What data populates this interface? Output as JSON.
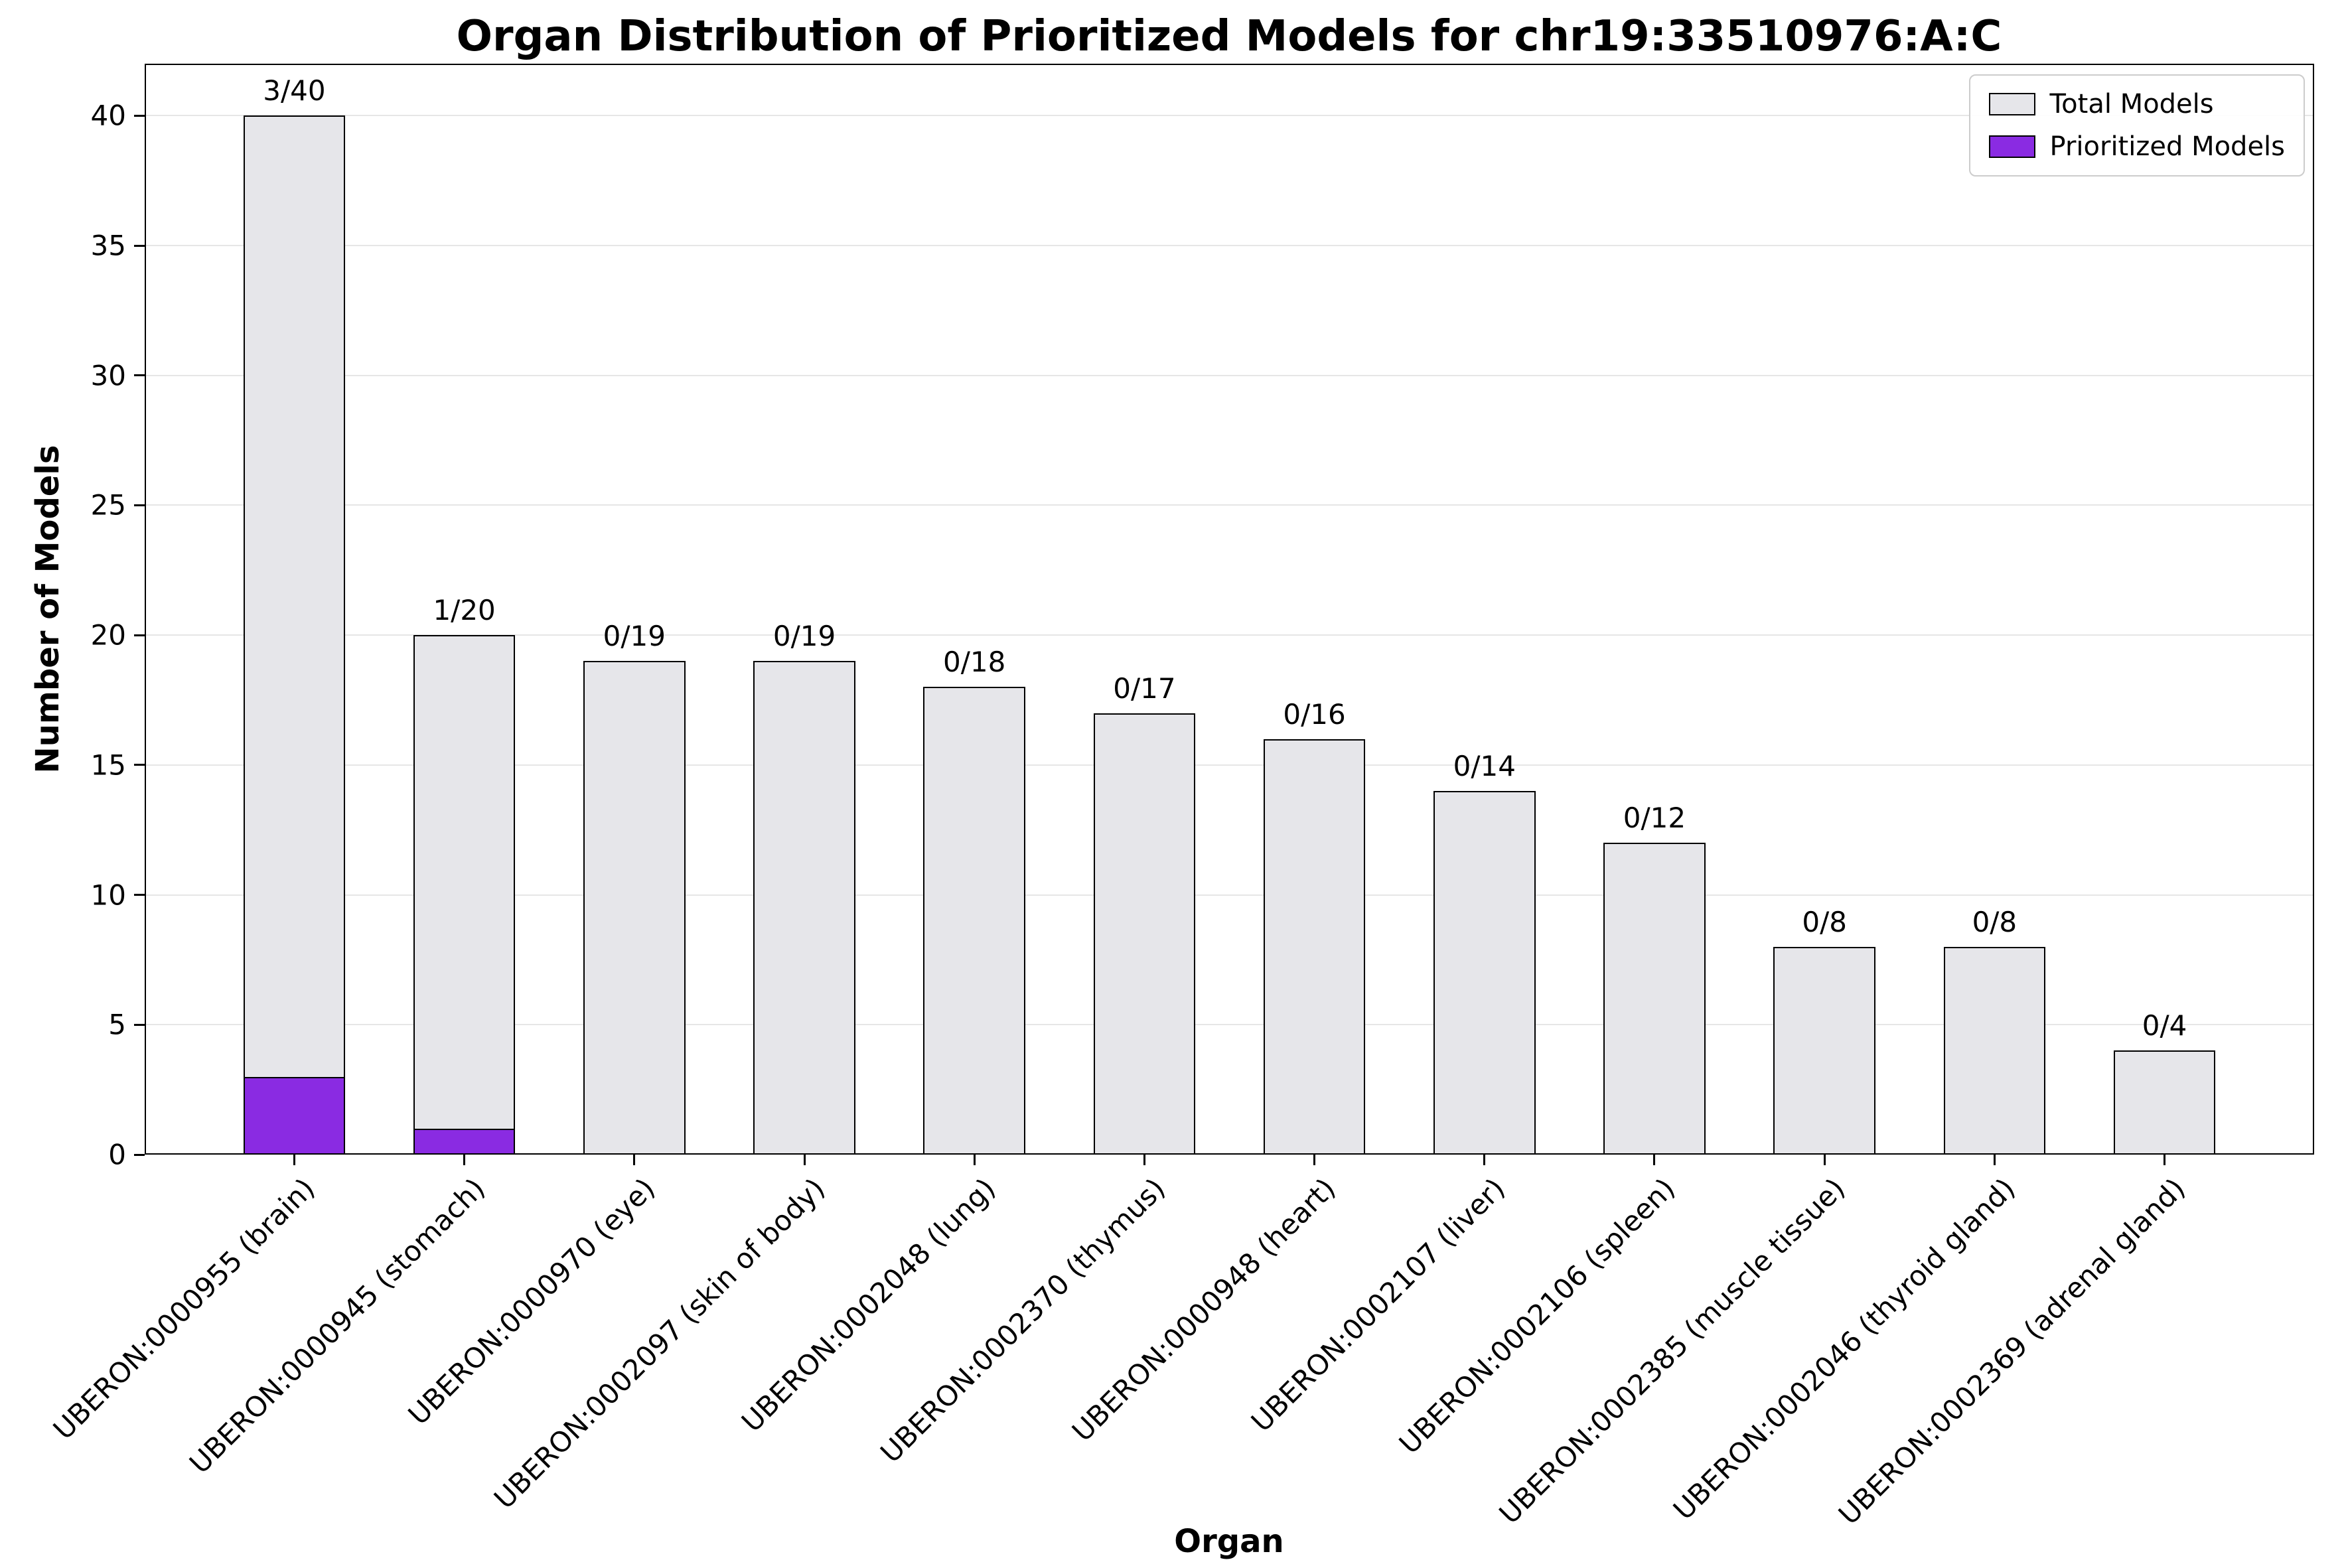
{
  "title": "Organ Distribution of Prioritized Models for chr19:33510976:A:C",
  "colors": {
    "total": "#e6e6ea",
    "prioritized": "#8a2be2",
    "edge": "#000000",
    "grid": "#e6e6e6",
    "background": "#ffffff"
  },
  "legend": {
    "items": [
      {
        "label": "Total Models",
        "color": "#e6e6ea"
      },
      {
        "label": "Prioritized Models",
        "color": "#8a2be2"
      }
    ]
  },
  "chart_data": {
    "type": "bar",
    "title": "Organ Distribution of Prioritized Models for chr19:33510976:A:C",
    "xlabel": "Organ",
    "ylabel": "Number of Models",
    "ylim": [
      0,
      42
    ],
    "yticks": [
      0,
      5,
      10,
      15,
      20,
      25,
      30,
      35,
      40
    ],
    "grid": true,
    "legend_position": "upper right",
    "categories": [
      "UBERON:0000955 (brain)",
      "UBERON:0000945 (stomach)",
      "UBERON:0000970 (eye)",
      "UBERON:0002097 (skin of body)",
      "UBERON:0002048 (lung)",
      "UBERON:0002370 (thymus)",
      "UBERON:0000948 (heart)",
      "UBERON:0002107 (liver)",
      "UBERON:0002106 (spleen)",
      "UBERON:0002385 (muscle tissue)",
      "UBERON:0002046 (thyroid gland)",
      "UBERON:0002369 (adrenal gland)"
    ],
    "series": [
      {
        "name": "Total Models",
        "color": "#e6e6ea",
        "values": [
          40,
          20,
          19,
          19,
          18,
          17,
          16,
          14,
          12,
          8,
          8,
          4
        ]
      },
      {
        "name": "Prioritized Models",
        "color": "#8a2be2",
        "values": [
          3,
          1,
          0,
          0,
          0,
          0,
          0,
          0,
          0,
          0,
          0,
          0
        ]
      }
    ],
    "bar_labels": [
      "3/40",
      "1/20",
      "0/19",
      "0/19",
      "0/18",
      "0/17",
      "0/16",
      "0/14",
      "0/12",
      "0/8",
      "0/8",
      "0/4"
    ]
  }
}
